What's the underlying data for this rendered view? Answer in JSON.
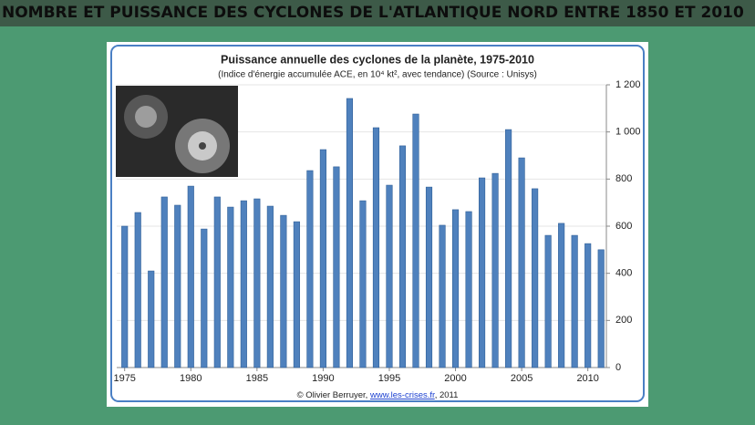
{
  "heading": "NOMBRE ET PUISSANCE DES CYCLONES DE L'ATLANTIQUE NORD ENTRE 1850 ET 2010",
  "chart_data": {
    "type": "bar",
    "title": "Puissance annuelle des cyclones de la planète, 1975-2010",
    "subtitle": "(Indice d'énergie accumulée ACE, en 10⁴ kt², avec tendance) (Source : Unisys)",
    "x": [
      1975,
      1976,
      1977,
      1978,
      1979,
      1980,
      1981,
      1982,
      1983,
      1984,
      1985,
      1986,
      1987,
      1988,
      1989,
      1990,
      1991,
      1992,
      1993,
      1994,
      1995,
      1996,
      1997,
      1998,
      1999,
      2000,
      2001,
      2002,
      2003,
      2004,
      2005,
      2006,
      2007,
      2008,
      2009,
      2010,
      2011
    ],
    "values": [
      600,
      658,
      410,
      724,
      689,
      770,
      588,
      724,
      681,
      708,
      716,
      685,
      646,
      619,
      836,
      925,
      852,
      1142,
      708,
      1018,
      774,
      941,
      1076,
      766,
      604,
      670,
      662,
      805,
      824,
      1010,
      890,
      759,
      561,
      612,
      561,
      526,
      500
    ],
    "color": "#4f81bd",
    "xlim": [
      1974.4,
      2011.4
    ],
    "xticks": [
      1975,
      1980,
      1985,
      1990,
      1995,
      2000,
      2005,
      2010
    ],
    "ylim": [
      0,
      1200
    ],
    "yticks": [
      0,
      200,
      400,
      600,
      800,
      {
        "value": 1000,
        "label": "1 000"
      },
      {
        "value": 1200,
        "label": "1 200"
      }
    ],
    "grid": true,
    "footer": [
      "© Olivier Berruyer, ",
      "www.les-crises.fr",
      ",  2011"
    ]
  }
}
